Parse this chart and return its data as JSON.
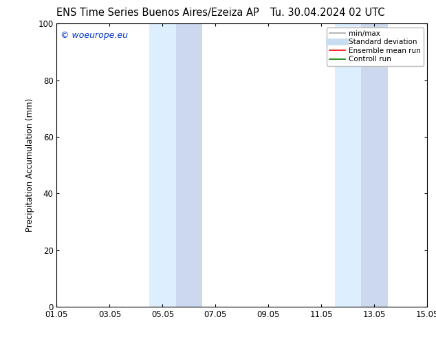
{
  "title_left": "ENS Time Series Buenos Aires/Ezeiza AP",
  "title_right": "Tu. 30.04.2024 02 UTC",
  "ylabel": "Precipitation Accumulation (mm)",
  "ylim": [
    0,
    100
  ],
  "x_tick_labels": [
    "01.05",
    "03.05",
    "05.05",
    "07.05",
    "09.05",
    "11.05",
    "13.05",
    "15.05"
  ],
  "x_tick_positions": [
    0,
    2,
    4,
    6,
    8,
    10,
    12,
    14
  ],
  "shaded_bands": [
    {
      "x_start": 3.5,
      "x_end": 4.5,
      "color": "#ddeeff"
    },
    {
      "x_start": 4.5,
      "x_end": 5.5,
      "color": "#ccd8ee"
    },
    {
      "x_start": 10.5,
      "x_end": 11.5,
      "color": "#ddeeff"
    },
    {
      "x_start": 11.5,
      "x_end": 12.5,
      "color": "#ccd8ee"
    }
  ],
  "watermark_text": "© woeurope.eu",
  "watermark_color": "#0033cc",
  "bg_color": "#ffffff",
  "plot_bg_color": "#ffffff",
  "border_color": "#000000",
  "legend_items": [
    {
      "label": "min/max",
      "color": "#aaaaaa",
      "lw": 1.2,
      "style": "solid"
    },
    {
      "label": "Standard deviation",
      "color": "#c8ddf0",
      "lw": 7,
      "style": "solid"
    },
    {
      "label": "Ensemble mean run",
      "color": "#ff0000",
      "lw": 1.2,
      "style": "solid"
    },
    {
      "label": "Controll run",
      "color": "#008000",
      "lw": 1.2,
      "style": "solid"
    }
  ],
  "font_size_title": 10.5,
  "font_size_axis": 8.5,
  "font_size_legend": 7.5,
  "font_size_watermark": 9
}
